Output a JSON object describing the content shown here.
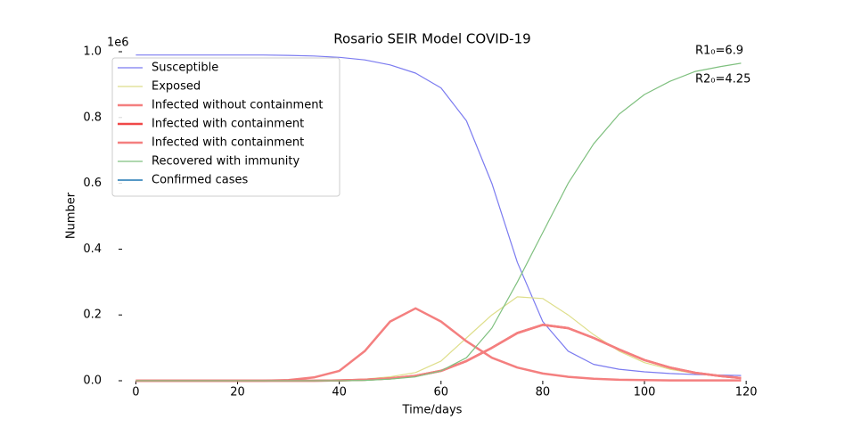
{
  "chart_data": {
    "type": "line",
    "title": "Rosario SEIR Model COVID-19",
    "x_label": "Time/days",
    "y_label": "Number",
    "y_offset_label": "1e6",
    "annotations": [
      "R1₀=6.9",
      "R2₀=4.25"
    ],
    "x": [
      0,
      5,
      10,
      15,
      20,
      25,
      30,
      35,
      40,
      45,
      50,
      55,
      60,
      65,
      70,
      75,
      80,
      85,
      90,
      95,
      100,
      105,
      110,
      115,
      119
    ],
    "xlim": [
      -2.7,
      120.5
    ],
    "xticks": [
      0,
      20,
      40,
      60,
      80,
      100,
      120
    ],
    "ylim": [
      0,
      1
    ],
    "yticks": [
      {
        "value": 0,
        "label": "0.0"
      },
      {
        "value": 0.2,
        "label": "0.2"
      },
      {
        "value": 0.4,
        "label": "0.4"
      },
      {
        "value": 0.6,
        "label": "0.6"
      },
      {
        "value": 0.8,
        "label": "0.8"
      },
      {
        "value": 1,
        "label": "1.0"
      }
    ],
    "legend": "upper left",
    "series": [
      {
        "name": "Susceptible",
        "color": "#7b7bf0",
        "width": 1.2,
        "values": [
          0.99,
          0.99,
          0.99,
          0.99,
          0.99,
          0.99,
          0.989,
          0.987,
          0.983,
          0.975,
          0.96,
          0.935,
          0.89,
          0.79,
          0.6,
          0.36,
          0.18,
          0.09,
          0.05,
          0.035,
          0.027,
          0.022,
          0.019,
          0.017,
          0.016
        ]
      },
      {
        "name": "Exposed",
        "color": "#dede8a",
        "width": 1.2,
        "values": [
          0,
          0,
          0,
          0,
          0,
          0,
          0.001,
          0.001,
          0.002,
          0.005,
          0.012,
          0.025,
          0.06,
          0.13,
          0.2,
          0.255,
          0.25,
          0.2,
          0.14,
          0.09,
          0.055,
          0.035,
          0.022,
          0.013,
          0.009
        ]
      },
      {
        "name": "Infected without containment",
        "color": "#f47f7f",
        "width": 2.5,
        "values": [
          0,
          0,
          0,
          0,
          0,
          0,
          0.002,
          0.01,
          0.03,
          0.09,
          0.18,
          0.22,
          0.18,
          0.12,
          0.07,
          0.04,
          0.022,
          0.012,
          0.006,
          0.003,
          0.002,
          0.001,
          0.001,
          0.001,
          0.001
        ]
      },
      {
        "name": "Infected with containment",
        "color": "#f04848",
        "width": 2.5,
        "values": [
          0,
          0,
          0,
          0,
          0,
          0,
          0,
          0,
          0.001,
          0.003,
          0.007,
          0.015,
          0.03,
          0.06,
          0.1,
          0.145,
          0.17,
          0.16,
          0.13,
          0.095,
          0.063,
          0.04,
          0.024,
          0.014,
          0.008
        ]
      },
      {
        "name": "Infected with containment",
        "color": "#f47f7f",
        "width": 2.5,
        "values": [
          0,
          0,
          0,
          0,
          0,
          0,
          0,
          0,
          0.001,
          0.003,
          0.007,
          0.015,
          0.03,
          0.06,
          0.1,
          0.145,
          0.17,
          0.16,
          0.13,
          0.095,
          0.063,
          0.04,
          0.024,
          0.014,
          0.008
        ]
      },
      {
        "name": "Recovered with immunity",
        "color": "#7fc07f",
        "width": 1.2,
        "values": [
          0,
          0,
          0,
          0,
          0,
          0,
          0,
          0,
          0,
          0.001,
          0.005,
          0.012,
          0.03,
          0.07,
          0.16,
          0.3,
          0.45,
          0.6,
          0.72,
          0.81,
          0.87,
          0.91,
          0.94,
          0.955,
          0.965
        ]
      },
      {
        "name": "Confirmed cases",
        "color": "#1f77b4",
        "width": 1.5,
        "values": [
          null,
          null,
          null,
          null,
          null,
          null,
          null,
          null,
          null,
          null,
          null,
          null,
          null,
          null,
          null,
          null,
          null,
          null,
          null,
          null,
          null,
          null,
          null,
          null,
          null
        ]
      }
    ]
  }
}
